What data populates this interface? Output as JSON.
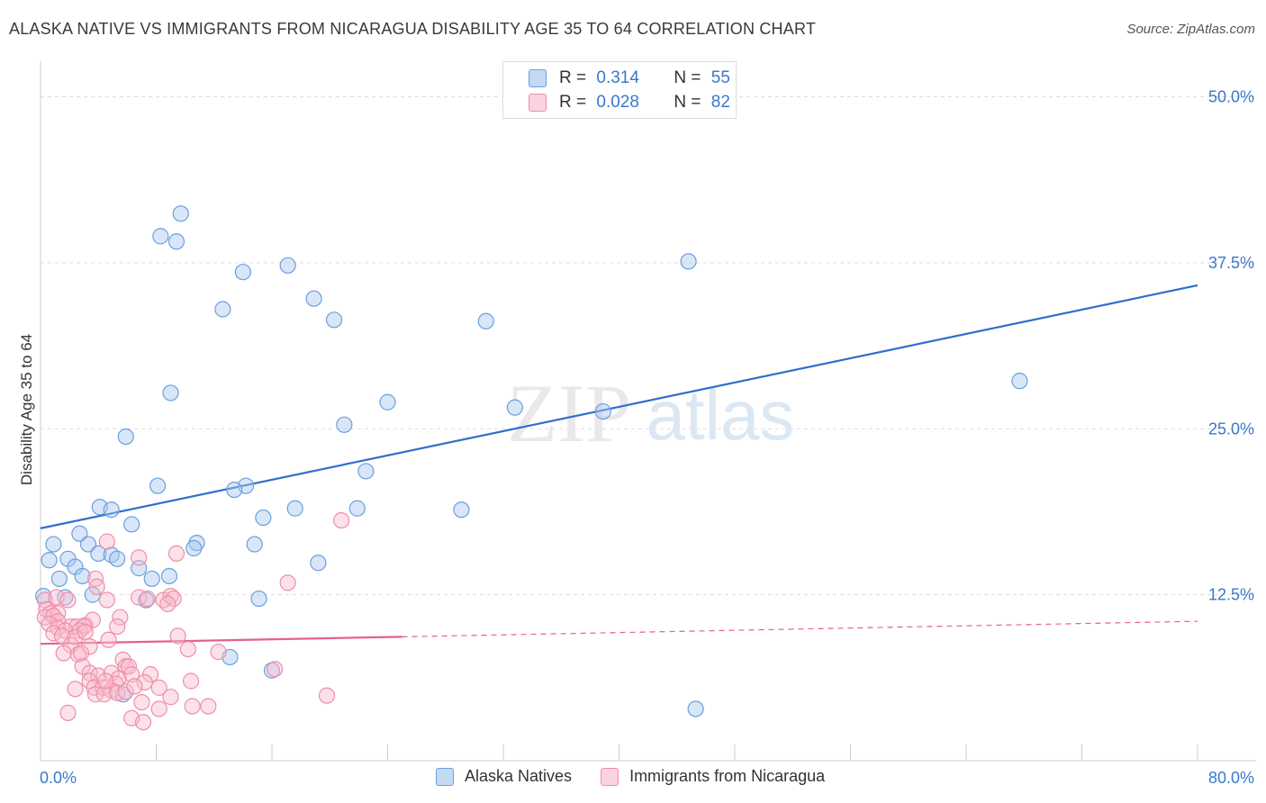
{
  "title": "ALASKA NATIVE VS IMMIGRANTS FROM NICARAGUA DISABILITY AGE 35 TO 64 CORRELATION CHART",
  "source": "Source: ZipAtlas.com",
  "watermark": {
    "zip": "ZIP",
    "atlas": "atlas"
  },
  "legend": {
    "rows": [
      {
        "r_label": "R =",
        "r_value": "0.314",
        "n_label": "N =",
        "n_value": "55",
        "color": "#a9c8f0",
        "border": "#6b9fde"
      },
      {
        "r_label": "R =",
        "r_value": "0.028",
        "n_label": "N =",
        "n_value": "82",
        "color": "#f9bccd",
        "border": "#ee8eab"
      }
    ]
  },
  "bottom_legend": {
    "series1": "Alaska Natives",
    "series2": "Immigrants from Nicaragua"
  },
  "chart_data": {
    "type": "scatter",
    "title": "ALASKA NATIVE VS IMMIGRANTS FROM NICARAGUA DISABILITY AGE 35 TO 64 CORRELATION CHART",
    "xlabel": "",
    "ylabel": "Disability Age 35 to 64",
    "xlim": [
      0,
      80
    ],
    "ylim": [
      0,
      52
    ],
    "x_tick_labels": [
      "0.0%",
      "80.0%"
    ],
    "y_ticks": [
      12.5,
      25,
      37.5,
      50
    ],
    "y_tick_labels": [
      "12.5%",
      "25.0%",
      "37.5%",
      "50.0%"
    ],
    "grid": true,
    "series": [
      {
        "name": "Alaska Natives",
        "color": "#6b9fde",
        "fill": "#a9c8f0",
        "trend": {
          "x0": 0,
          "y0": 17.5,
          "x1": 80,
          "y1": 35.8,
          "dashed_from": null
        },
        "points": [
          [
            9.7,
            41.2
          ],
          [
            8.3,
            39.5
          ],
          [
            9.4,
            39.1
          ],
          [
            14,
            36.8
          ],
          [
            17.1,
            37.3
          ],
          [
            12.6,
            34
          ],
          [
            18.9,
            34.8
          ],
          [
            20.3,
            33.2
          ],
          [
            30.8,
            33.1
          ],
          [
            44.8,
            37.6
          ],
          [
            67.7,
            28.6
          ],
          [
            9,
            27.7
          ],
          [
            5.9,
            24.4
          ],
          [
            24,
            27
          ],
          [
            21,
            25.3
          ],
          [
            32.8,
            26.6
          ],
          [
            38.9,
            26.3
          ],
          [
            8.1,
            20.7
          ],
          [
            14.2,
            20.7
          ],
          [
            13.4,
            20.4
          ],
          [
            22.5,
            21.8
          ],
          [
            4.1,
            19.1
          ],
          [
            4.9,
            18.9
          ],
          [
            17.6,
            19
          ],
          [
            21.9,
            19
          ],
          [
            29.1,
            18.9
          ],
          [
            15.4,
            18.3
          ],
          [
            6.3,
            17.8
          ],
          [
            2.7,
            17.1
          ],
          [
            0.9,
            16.3
          ],
          [
            3.3,
            16.3
          ],
          [
            10.8,
            16.4
          ],
          [
            10.6,
            16
          ],
          [
            14.8,
            16.3
          ],
          [
            0.6,
            15.1
          ],
          [
            4,
            15.6
          ],
          [
            4.9,
            15.5
          ],
          [
            1.9,
            15.2
          ],
          [
            5.3,
            15.2
          ],
          [
            2.4,
            14.6
          ],
          [
            6.8,
            14.5
          ],
          [
            19.2,
            14.9
          ],
          [
            1.3,
            13.7
          ],
          [
            2.9,
            13.9
          ],
          [
            7.7,
            13.7
          ],
          [
            8.9,
            13.9
          ],
          [
            0.2,
            12.4
          ],
          [
            1.7,
            12.3
          ],
          [
            3.6,
            12.5
          ],
          [
            7.3,
            12.1
          ],
          [
            15.1,
            12.2
          ],
          [
            13.1,
            7.8
          ],
          [
            16,
            6.8
          ],
          [
            5.7,
            5
          ],
          [
            45.3,
            3.9
          ]
        ]
      },
      {
        "name": "Immigrants from Nicaragua",
        "color": "#ee8eab",
        "fill": "#f9bccd",
        "trend": {
          "x0": 0,
          "y0": 8.8,
          "x1": 80,
          "y1": 10.5,
          "dashed_from": 25
        },
        "points": [
          [
            20.8,
            18.1
          ],
          [
            4.6,
            16.5
          ],
          [
            9.4,
            15.6
          ],
          [
            6.8,
            15.3
          ],
          [
            17.1,
            13.4
          ],
          [
            3.8,
            13.7
          ],
          [
            3.9,
            13.1
          ],
          [
            0.3,
            12.1
          ],
          [
            1.1,
            12.3
          ],
          [
            1.9,
            12.1
          ],
          [
            4.6,
            12.1
          ],
          [
            6.8,
            12.3
          ],
          [
            7.4,
            12.2
          ],
          [
            8.5,
            12.1
          ],
          [
            9,
            12.4
          ],
          [
            9.2,
            12.2
          ],
          [
            8.8,
            11.8
          ],
          [
            0.4,
            11.4
          ],
          [
            0.7,
            11.1
          ],
          [
            1.2,
            11.1
          ],
          [
            0.3,
            10.8
          ],
          [
            0.9,
            10.9
          ],
          [
            1.2,
            10.5
          ],
          [
            0.6,
            10.3
          ],
          [
            2.1,
            10.1
          ],
          [
            2.5,
            10.1
          ],
          [
            3.1,
            10.2
          ],
          [
            3.6,
            10.6
          ],
          [
            3,
            10.1
          ],
          [
            5.5,
            10.8
          ],
          [
            1.2,
            10
          ],
          [
            1.7,
            9.8
          ],
          [
            2.7,
            9.8
          ],
          [
            5.3,
            10.1
          ],
          [
            0.9,
            9.6
          ],
          [
            1.5,
            9.4
          ],
          [
            2.4,
            9.3
          ],
          [
            3.1,
            9.7
          ],
          [
            4.7,
            9.1
          ],
          [
            9.5,
            9.4
          ],
          [
            2.1,
            8.7
          ],
          [
            3.4,
            8.6
          ],
          [
            10.2,
            8.4
          ],
          [
            12.3,
            8.2
          ],
          [
            1.6,
            8.1
          ],
          [
            2.6,
            8
          ],
          [
            2.8,
            8.1
          ],
          [
            5.7,
            7.6
          ],
          [
            5.9,
            7.1
          ],
          [
            2.9,
            7.1
          ],
          [
            6.1,
            7.1
          ],
          [
            3.4,
            6.6
          ],
          [
            4,
            6.4
          ],
          [
            4.9,
            6.6
          ],
          [
            5.4,
            6.2
          ],
          [
            6.3,
            6.5
          ],
          [
            7.6,
            6.5
          ],
          [
            16.2,
            6.9
          ],
          [
            3.4,
            6
          ],
          [
            3.7,
            5.5
          ],
          [
            4.3,
            5.5
          ],
          [
            5.2,
            5.8
          ],
          [
            7.2,
            5.9
          ],
          [
            4.9,
            5.3
          ],
          [
            8.2,
            5.5
          ],
          [
            2.4,
            5.4
          ],
          [
            3.8,
            5
          ],
          [
            4.4,
            5
          ],
          [
            5.3,
            5.1
          ],
          [
            5.9,
            5.2
          ],
          [
            7,
            4.4
          ],
          [
            19.8,
            4.9
          ],
          [
            10.5,
            4.1
          ],
          [
            1.9,
            3.6
          ],
          [
            6.3,
            3.2
          ],
          [
            7.1,
            2.9
          ],
          [
            4.5,
            6
          ],
          [
            6.5,
            5.6
          ],
          [
            8.2,
            3.9
          ],
          [
            9,
            4.8
          ],
          [
            10.4,
            6
          ],
          [
            11.6,
            4.1
          ]
        ]
      }
    ]
  }
}
